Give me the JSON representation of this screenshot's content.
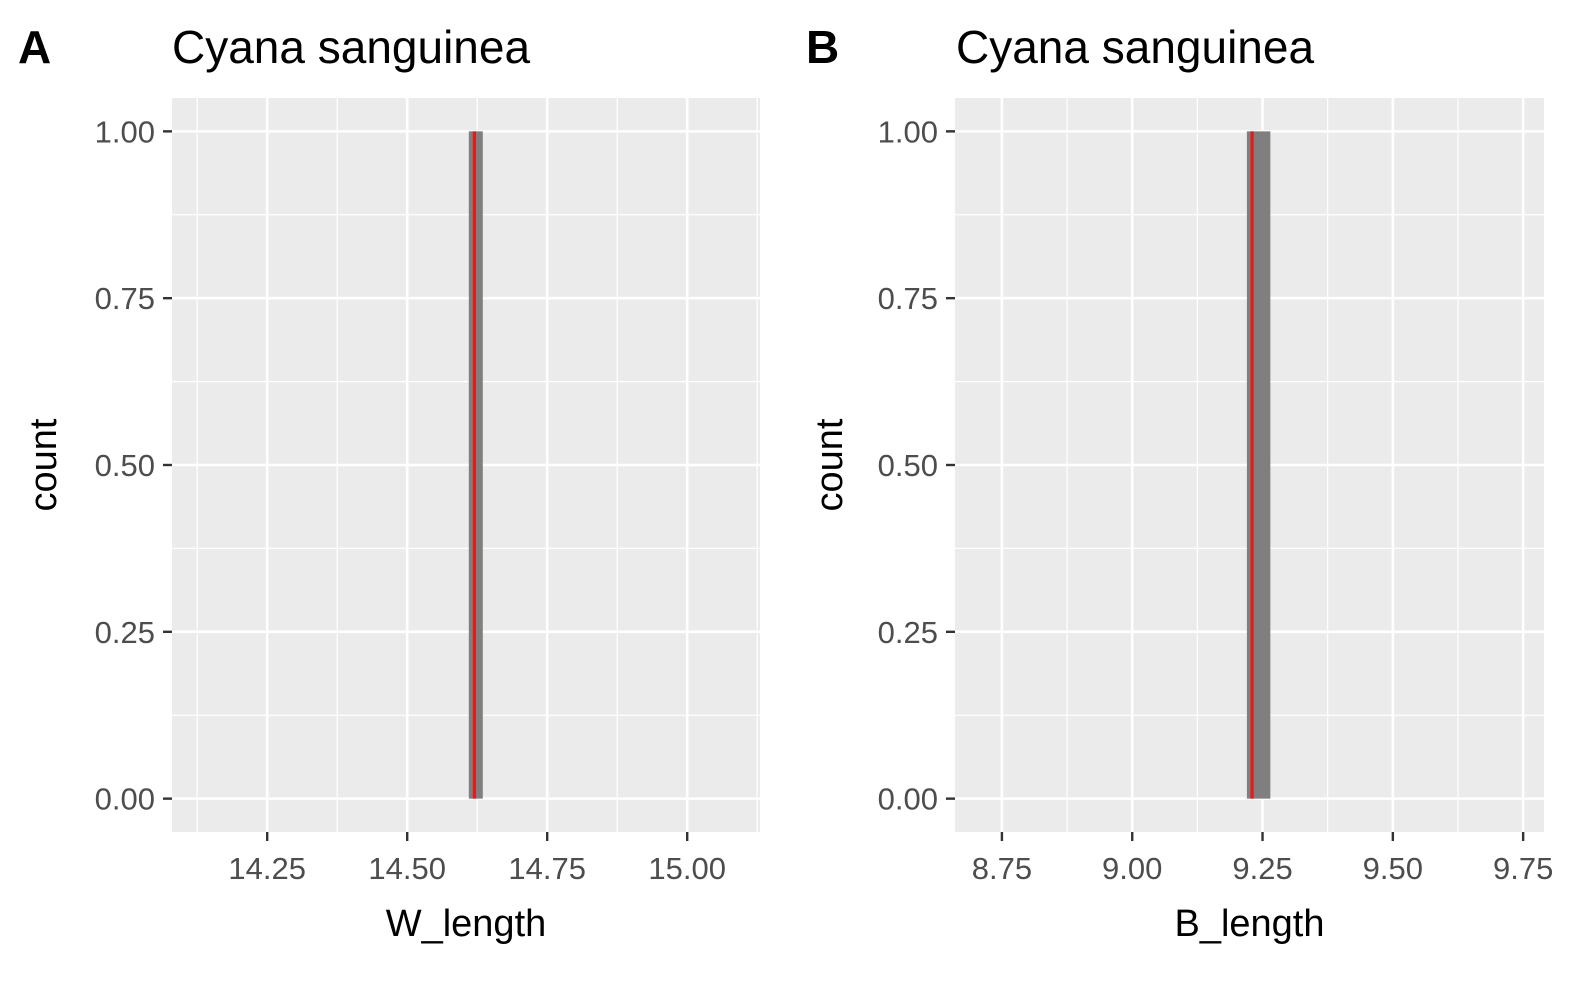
{
  "chart_data": [
    {
      "type": "bar",
      "tag": "A",
      "title": "Cyana sanguinea",
      "xlabel": "W_length",
      "ylabel": "count",
      "xlim": [
        14.08,
        15.13
      ],
      "ylim": [
        -0.05,
        1.05
      ],
      "x_ticks": [
        {
          "value": 14.25,
          "label": "14.25"
        },
        {
          "value": 14.5,
          "label": "14.50"
        },
        {
          "value": 14.75,
          "label": "14.75"
        },
        {
          "value": 15.0,
          "label": "15.00"
        }
      ],
      "y_ticks": [
        {
          "value": 0,
          "label": "0.00"
        },
        {
          "value": 0.25,
          "label": "0.25"
        },
        {
          "value": 0.5,
          "label": "0.50"
        },
        {
          "value": 0.75,
          "label": "0.75"
        },
        {
          "value": 1.0,
          "label": "1.00"
        }
      ],
      "bins": [
        {
          "x_min": 14.61,
          "x_max": 14.635,
          "count": 1
        }
      ],
      "reference_line": {
        "x": 14.62,
        "color": "#e41a1c"
      },
      "bar_color": "#7f7f7f",
      "grid": true
    },
    {
      "type": "bar",
      "tag": "B",
      "title": "Cyana sanguinea",
      "xlabel": "B_length",
      "ylabel": "count",
      "xlim": [
        8.66,
        9.79
      ],
      "ylim": [
        -0.05,
        1.05
      ],
      "x_ticks": [
        {
          "value": 8.75,
          "label": "8.75"
        },
        {
          "value": 9.0,
          "label": "9.00"
        },
        {
          "value": 9.25,
          "label": "9.25"
        },
        {
          "value": 9.5,
          "label": "9.50"
        },
        {
          "value": 9.75,
          "label": "9.75"
        }
      ],
      "y_ticks": [
        {
          "value": 0,
          "label": "0.00"
        },
        {
          "value": 0.25,
          "label": "0.25"
        },
        {
          "value": 0.5,
          "label": "0.50"
        },
        {
          "value": 0.75,
          "label": "0.75"
        },
        {
          "value": 1.0,
          "label": "1.00"
        }
      ],
      "bins": [
        {
          "x_min": 9.22,
          "x_max": 9.265,
          "count": 1
        }
      ],
      "reference_line": {
        "x": 9.23,
        "color": "#e41a1c"
      },
      "bar_color": "#7f7f7f",
      "grid": true
    }
  ]
}
